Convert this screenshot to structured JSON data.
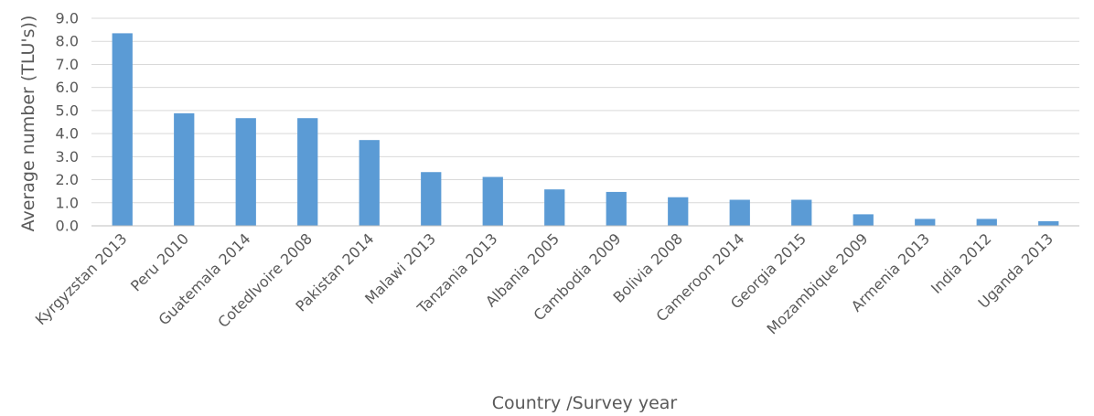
{
  "chart_data": {
    "type": "bar",
    "title": "",
    "xlabel": "Country /Survey year",
    "ylabel": "Average number (TLU's))",
    "ylim": [
      0,
      9
    ],
    "yticks": [
      "0.0",
      "1.0",
      "2.0",
      "3.0",
      "4.0",
      "5.0",
      "6.0",
      "7.0",
      "8.0",
      "9.0"
    ],
    "grid": true,
    "legend": "none",
    "bar_color": "#5b9bd5",
    "categories": [
      "Kyrgyzstan 2013",
      "Peru 2010",
      "Guatemala 2014",
      "CotedIvoire 2008",
      "Pakistan 2014",
      "Malawi 2013",
      "Tanzania 2013",
      "Albania 2005",
      "Cambodia 2009",
      "Bolivia 2008",
      "Cameroon 2014",
      "Georgia 2015",
      "Mozambique 2009",
      "Armenia 2013",
      "India 2012",
      "Uganda 2013"
    ],
    "values": [
      8.35,
      4.88,
      4.67,
      4.67,
      3.72,
      2.33,
      2.12,
      1.58,
      1.47,
      1.24,
      1.13,
      1.13,
      0.5,
      0.3,
      0.3,
      0.2
    ]
  }
}
